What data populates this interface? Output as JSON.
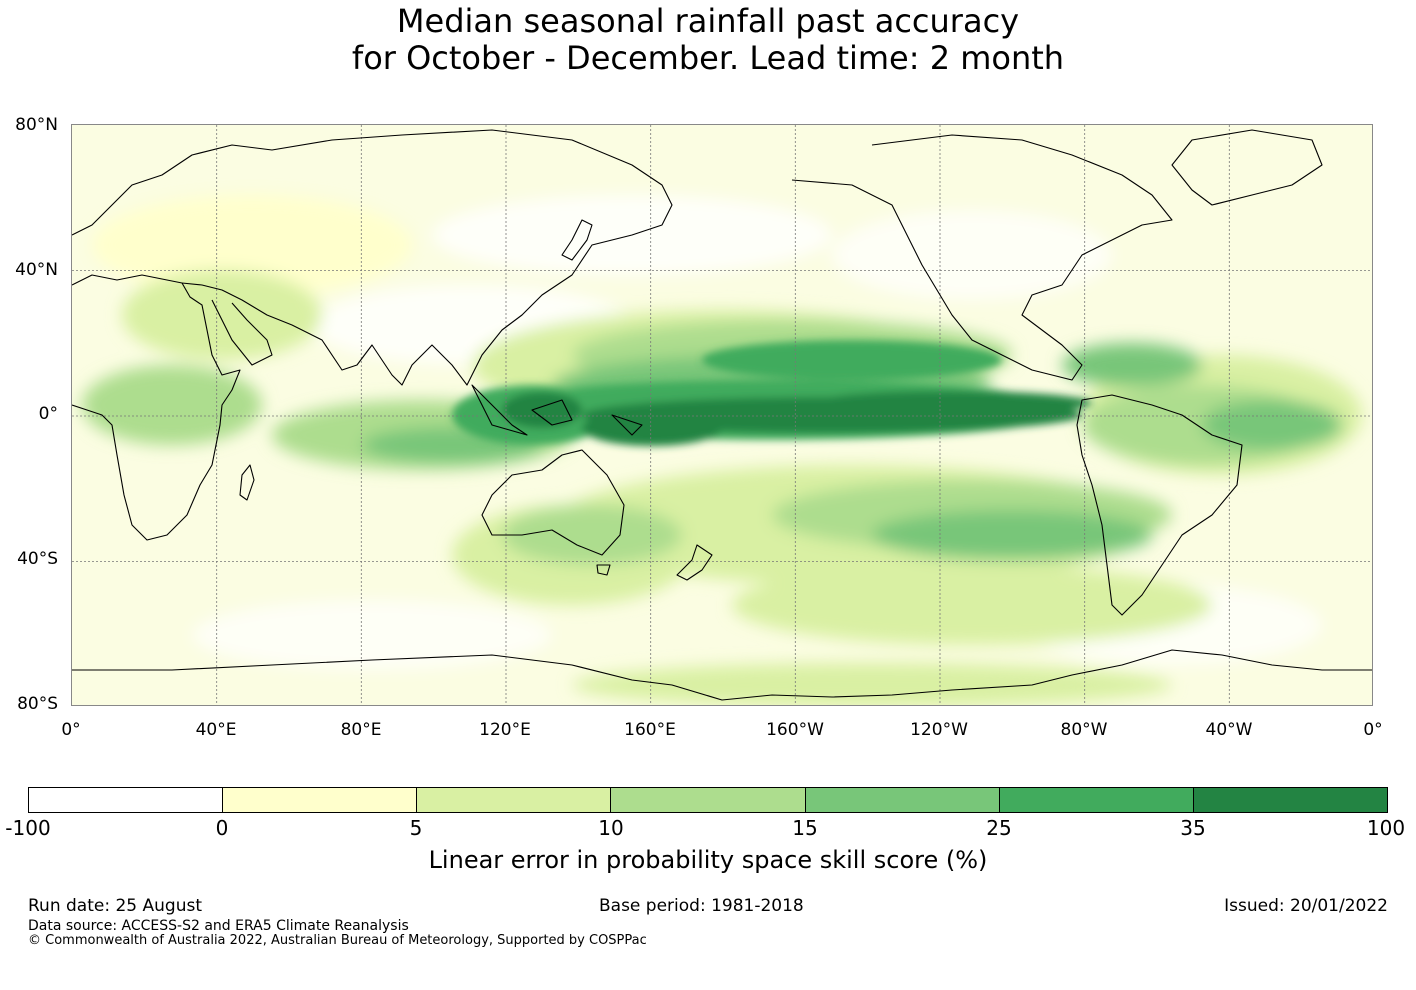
{
  "title_line1": "Median seasonal rainfall past accuracy",
  "title_line2": "for October - December. Lead time: 2 month",
  "map": {
    "lat_labels": [
      "80°N",
      "40°N",
      "0°",
      "40°S",
      "80°S"
    ],
    "lon_labels": [
      "0°",
      "40°E",
      "80°E",
      "120°E",
      "160°E",
      "160°W",
      "120°W",
      "80°W",
      "40°W",
      "0°"
    ],
    "gridlines": true,
    "projection": "equirectangular, 0°–360° longitude, 80°S–80°N"
  },
  "colorbar": {
    "ticks": [
      "-100",
      "0",
      "5",
      "10",
      "15",
      "25",
      "35",
      "100"
    ],
    "colors": [
      "#ffffff",
      "#ffffcc",
      "#d9f0a3",
      "#addd8e",
      "#78c679",
      "#41ab5d",
      "#238443"
    ],
    "label": "Linear error in probability space skill score (%)"
  },
  "footer": {
    "run_date": "Run date: 25 August",
    "base_period": "Base period: 1981-2018",
    "issued": "Issued: 20/01/2022",
    "data_source": "Data source: ACCESS-S2 and ERA5 Climate Reanalysis",
    "copyright": "© Commonwealth of Australia 2022, Australian Bureau of Meteorology, Supported by COSPPac"
  }
}
